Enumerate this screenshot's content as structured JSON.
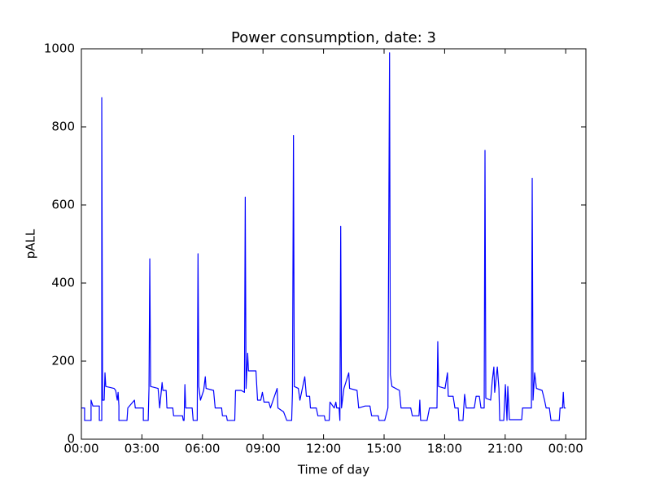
{
  "chart_data": {
    "type": "line",
    "title": "Power consumption, date:  3",
    "xlabel": "Time of day",
    "ylabel": "pALL",
    "color": "#0000ff",
    "grid": false,
    "x": [
      0,
      0.16,
      0.16,
      0.48,
      0.48,
      0.57,
      0.89,
      0.89,
      1.01,
      1.01,
      1.05,
      1.13,
      1.17,
      1.21,
      1.62,
      1.7,
      1.78,
      1.82,
      1.86,
      1.86,
      2.26,
      2.3,
      2.63,
      2.67,
      3.07,
      3.07,
      3.31,
      3.35,
      3.39,
      3.43,
      3.8,
      3.88,
      4.0,
      4.04,
      4.2,
      4.24,
      4.53,
      4.57,
      5.01,
      5.05,
      5.09,
      5.13,
      5.17,
      5.49,
      5.54,
      5.74,
      5.78,
      5.82,
      5.9,
      6.06,
      6.14,
      6.18,
      6.55,
      6.63,
      6.95,
      6.99,
      7.19,
      7.23,
      7.6,
      7.64,
      7.92,
      8.08,
      8.12,
      8.16,
      8.24,
      8.28,
      8.65,
      8.73,
      8.89,
      8.97,
      9.05,
      9.29,
      9.37,
      9.7,
      9.74,
      10.02,
      10.18,
      10.42,
      10.46,
      10.51,
      10.55,
      10.75,
      10.83,
      11.07,
      11.15,
      11.31,
      11.35,
      11.64,
      11.72,
      12.04,
      12.08,
      12.28,
      12.32,
      12.53,
      12.61,
      12.65,
      12.77,
      12.81,
      12.85,
      12.89,
      13.01,
      13.25,
      13.29,
      13.66,
      13.74,
      14.06,
      14.3,
      14.38,
      14.71,
      14.75,
      15.03,
      15.19,
      15.27,
      15.31,
      15.39,
      15.76,
      15.84,
      16.32,
      16.4,
      16.73,
      16.77,
      16.81,
      17.13,
      17.25,
      17.62,
      17.66,
      17.7,
      18.02,
      18.14,
      18.18,
      18.42,
      18.51,
      18.67,
      18.71,
      18.91,
      18.99,
      19.07,
      19.47,
      19.56,
      19.72,
      19.8,
      19.96,
      20.0,
      20.04,
      20.28,
      20.36,
      20.44,
      20.48,
      20.61,
      20.69,
      20.73,
      20.93,
      21.01,
      21.09,
      21.13,
      21.21,
      21.82,
      21.86,
      22.3,
      22.34,
      22.38,
      22.46,
      22.55,
      22.83,
      22.95,
      23.03,
      23.19,
      23.27,
      23.68,
      23.72,
      23.84,
      23.88,
      23.92,
      24.0
    ],
    "values": [
      80,
      80,
      48,
      48,
      100,
      85,
      85,
      48,
      48,
      875,
      100,
      100,
      170,
      135,
      130,
      125,
      100,
      120,
      85,
      48,
      48,
      80,
      100,
      80,
      80,
      48,
      48,
      130,
      462,
      135,
      130,
      80,
      145,
      125,
      125,
      80,
      80,
      60,
      60,
      48,
      48,
      140,
      80,
      80,
      48,
      48,
      475,
      135,
      100,
      125,
      160,
      130,
      125,
      80,
      80,
      60,
      60,
      48,
      48,
      125,
      125,
      120,
      620,
      130,
      220,
      175,
      175,
      100,
      100,
      120,
      95,
      95,
      80,
      130,
      80,
      70,
      48,
      48,
      120,
      778,
      135,
      130,
      100,
      160,
      110,
      110,
      80,
      80,
      60,
      60,
      48,
      48,
      95,
      80,
      95,
      80,
      80,
      48,
      545,
      80,
      130,
      170,
      130,
      125,
      80,
      85,
      85,
      60,
      60,
      48,
      48,
      80,
      990,
      165,
      135,
      125,
      80,
      80,
      60,
      60,
      100,
      48,
      48,
      80,
      80,
      250,
      135,
      130,
      170,
      110,
      110,
      80,
      80,
      48,
      48,
      115,
      80,
      80,
      110,
      110,
      80,
      80,
      740,
      105,
      100,
      150,
      185,
      120,
      185,
      130,
      48,
      48,
      140,
      48,
      135,
      50,
      50,
      80,
      80,
      668,
      100,
      170,
      130,
      125,
      100,
      80,
      80,
      48,
      48,
      80,
      80,
      120,
      80,
      80
    ],
    "xlim": [
      0,
      25
    ],
    "ylim": [
      0,
      1000
    ],
    "xticks": [
      {
        "value": 0,
        "label": "00:00"
      },
      {
        "value": 3,
        "label": "03:00"
      },
      {
        "value": 6,
        "label": "06:00"
      },
      {
        "value": 9,
        "label": "09:00"
      },
      {
        "value": 12,
        "label": "12:00"
      },
      {
        "value": 15,
        "label": "15:00"
      },
      {
        "value": 18,
        "label": "18:00"
      },
      {
        "value": 21,
        "label": "21:00"
      },
      {
        "value": 24,
        "label": "00:00"
      }
    ],
    "yticks": [
      0,
      200,
      400,
      600,
      800,
      1000
    ]
  }
}
